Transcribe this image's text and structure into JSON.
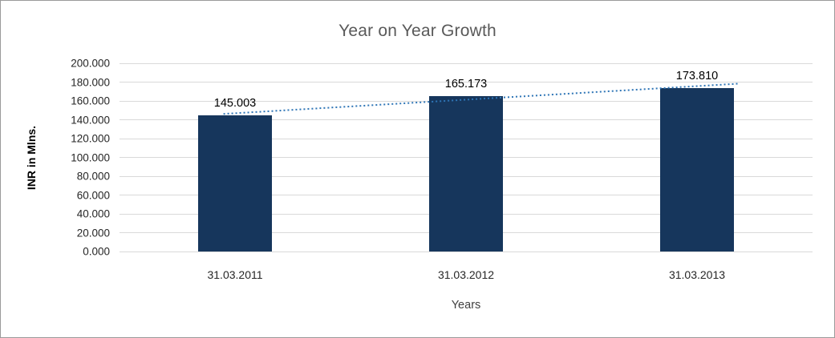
{
  "chart_data": {
    "type": "bar",
    "title": "Year on Year Growth",
    "xlabel": "Years",
    "ylabel": "INR in Mlns.",
    "categories": [
      "31.03.2011",
      "31.03.2012",
      "31.03.2013"
    ],
    "values": [
      145003,
      165173,
      173810
    ],
    "data_labels": [
      "145.003",
      "165.173",
      "173.810"
    ],
    "ytick_step": 20000,
    "ytick_labels": [
      "0.000",
      "20.000",
      "40.000",
      "60.000",
      "80.000",
      "100.000",
      "120.000",
      "140.000",
      "160.000",
      "180.000",
      "200.000"
    ],
    "ylim": [
      0,
      200000
    ],
    "grid": true,
    "legend": "none",
    "bar_color": "#16365C",
    "trendline": {
      "style": "dotted",
      "color": "#2E75B6"
    }
  }
}
